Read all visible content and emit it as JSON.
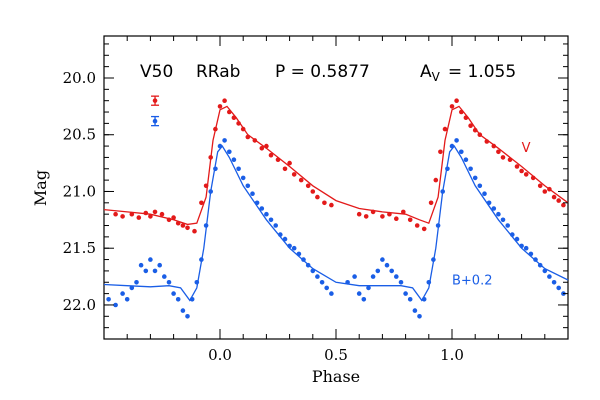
{
  "chart_data": {
    "type": "scatter",
    "title": "",
    "xlabel": "Phase",
    "ylabel": "Mag",
    "xlim": [
      -0.5,
      1.5
    ],
    "ylim": [
      22.3,
      19.63
    ],
    "y_inverted": true,
    "grid": false,
    "x_ticks": [
      {
        "value": 0.0,
        "label": "0.0"
      },
      {
        "value": 0.5,
        "label": "0.5"
      },
      {
        "value": 1.0,
        "label": "1.0"
      }
    ],
    "y_ticks": [
      {
        "value": 20.0,
        "label": "20.0"
      },
      {
        "value": 20.5,
        "label": "20.5"
      },
      {
        "value": 21.0,
        "label": "21.0"
      },
      {
        "value": 21.5,
        "label": "21.5"
      },
      {
        "value": 22.0,
        "label": "22.0"
      }
    ],
    "header": {
      "star": "V50",
      "type": "RRab",
      "period": "P = 0.5877",
      "amp_prefix": "A",
      "amp_sub": "V",
      "amp_value": "= 1.055"
    },
    "error_bars": [
      {
        "color": "#e31a1a",
        "x": -0.28,
        "y": 20.2,
        "err": 0.04
      },
      {
        "color": "#1a5ee6",
        "x": -0.28,
        "y": 20.38,
        "err": 0.04
      }
    ],
    "series": [
      {
        "name": "V",
        "color": "#e31a1a",
        "label_x": 1.3,
        "label_y": 20.65,
        "curve": [
          [
            -0.5,
            21.16
          ],
          [
            -0.4,
            21.18
          ],
          [
            -0.3,
            21.2
          ],
          [
            -0.2,
            21.25
          ],
          [
            -0.14,
            21.29
          ],
          [
            -0.1,
            21.28
          ],
          [
            -0.06,
            21.05
          ],
          [
            -0.03,
            20.55
          ],
          [
            0.0,
            20.28
          ],
          [
            0.03,
            20.25
          ],
          [
            0.07,
            20.35
          ],
          [
            0.12,
            20.5
          ],
          [
            0.2,
            20.62
          ],
          [
            0.3,
            20.78
          ],
          [
            0.4,
            20.95
          ],
          [
            0.5,
            21.08
          ],
          [
            0.6,
            21.15
          ],
          [
            0.7,
            21.18
          ],
          [
            0.8,
            21.2
          ],
          [
            0.86,
            21.25
          ],
          [
            0.9,
            21.28
          ],
          [
            0.94,
            21.05
          ],
          [
            0.97,
            20.55
          ],
          [
            1.0,
            20.28
          ],
          [
            1.03,
            20.25
          ],
          [
            1.07,
            20.35
          ],
          [
            1.12,
            20.5
          ],
          [
            1.2,
            20.62
          ],
          [
            1.3,
            20.78
          ],
          [
            1.4,
            20.95
          ],
          [
            1.5,
            21.1
          ]
        ],
        "points": [
          [
            -0.45,
            21.2
          ],
          [
            -0.42,
            21.22
          ],
          [
            -0.38,
            21.2
          ],
          [
            -0.35,
            21.23
          ],
          [
            -0.32,
            21.19
          ],
          [
            -0.3,
            21.22
          ],
          [
            -0.28,
            21.18
          ],
          [
            -0.25,
            21.2
          ],
          [
            -0.22,
            21.25
          ],
          [
            -0.2,
            21.23
          ],
          [
            -0.18,
            21.28
          ],
          [
            -0.16,
            21.3
          ],
          [
            -0.14,
            21.32
          ],
          [
            -0.11,
            21.35
          ],
          [
            -0.08,
            21.1
          ],
          [
            -0.06,
            20.95
          ],
          [
            -0.04,
            20.7
          ],
          [
            -0.02,
            20.45
          ],
          [
            0.0,
            20.25
          ],
          [
            0.02,
            20.2
          ],
          [
            0.04,
            20.3
          ],
          [
            0.06,
            20.35
          ],
          [
            0.08,
            20.4
          ],
          [
            0.1,
            20.45
          ],
          [
            0.12,
            20.52
          ],
          [
            0.15,
            20.55
          ],
          [
            0.18,
            20.62
          ],
          [
            0.2,
            20.6
          ],
          [
            0.22,
            20.68
          ],
          [
            0.25,
            20.72
          ],
          [
            0.28,
            20.8
          ],
          [
            0.3,
            20.75
          ],
          [
            0.32,
            20.85
          ],
          [
            0.35,
            20.9
          ],
          [
            0.38,
            20.95
          ],
          [
            0.4,
            21.0
          ],
          [
            0.42,
            21.05
          ],
          [
            0.45,
            21.1
          ],
          [
            0.48,
            21.12
          ],
          [
            0.6,
            21.2
          ],
          [
            0.63,
            21.22
          ],
          [
            0.66,
            21.18
          ],
          [
            0.7,
            21.22
          ],
          [
            0.73,
            21.2
          ],
          [
            0.76,
            21.24
          ],
          [
            0.79,
            21.18
          ],
          [
            0.82,
            21.25
          ],
          [
            0.85,
            21.3
          ],
          [
            0.88,
            21.33
          ],
          [
            0.91,
            21.1
          ],
          [
            0.93,
            20.9
          ],
          [
            0.95,
            20.65
          ],
          [
            0.97,
            20.45
          ],
          [
            1.0,
            20.25
          ],
          [
            1.02,
            20.2
          ],
          [
            1.04,
            20.3
          ],
          [
            1.06,
            20.35
          ],
          [
            1.08,
            20.42
          ],
          [
            1.1,
            20.46
          ],
          [
            1.12,
            20.5
          ],
          [
            1.15,
            20.56
          ],
          [
            1.18,
            20.6
          ],
          [
            1.2,
            20.65
          ],
          [
            1.22,
            20.7
          ],
          [
            1.25,
            20.72
          ],
          [
            1.28,
            20.78
          ],
          [
            1.3,
            20.82
          ],
          [
            1.32,
            20.85
          ],
          [
            1.35,
            20.88
          ],
          [
            1.38,
            20.95
          ],
          [
            1.4,
            21.0
          ],
          [
            1.42,
            20.98
          ],
          [
            1.44,
            21.05
          ],
          [
            1.46,
            21.08
          ],
          [
            1.48,
            21.12
          ]
        ]
      },
      {
        "name": "B+0.2",
        "color": "#1a5ee6",
        "label_x": 1.0,
        "label_y": 21.82,
        "curve": [
          [
            -0.5,
            21.82
          ],
          [
            -0.4,
            21.83
          ],
          [
            -0.3,
            21.84
          ],
          [
            -0.22,
            21.83
          ],
          [
            -0.17,
            21.85
          ],
          [
            -0.13,
            21.96
          ],
          [
            -0.1,
            21.85
          ],
          [
            -0.07,
            21.5
          ],
          [
            -0.04,
            21.0
          ],
          [
            -0.01,
            20.65
          ],
          [
            0.01,
            20.6
          ],
          [
            0.04,
            20.7
          ],
          [
            0.1,
            20.95
          ],
          [
            0.2,
            21.25
          ],
          [
            0.3,
            21.5
          ],
          [
            0.4,
            21.68
          ],
          [
            0.5,
            21.8
          ],
          [
            0.6,
            21.83
          ],
          [
            0.7,
            21.83
          ],
          [
            0.78,
            21.83
          ],
          [
            0.83,
            21.85
          ],
          [
            0.87,
            21.96
          ],
          [
            0.9,
            21.85
          ],
          [
            0.93,
            21.5
          ],
          [
            0.96,
            21.0
          ],
          [
            0.99,
            20.65
          ],
          [
            1.01,
            20.6
          ],
          [
            1.04,
            20.7
          ],
          [
            1.1,
            20.95
          ],
          [
            1.2,
            21.25
          ],
          [
            1.3,
            21.5
          ],
          [
            1.4,
            21.68
          ],
          [
            1.5,
            21.78
          ]
        ],
        "points": [
          [
            -0.48,
            21.95
          ],
          [
            -0.45,
            22.0
          ],
          [
            -0.42,
            21.9
          ],
          [
            -0.4,
            21.95
          ],
          [
            -0.38,
            21.85
          ],
          [
            -0.36,
            21.8
          ],
          [
            -0.34,
            21.65
          ],
          [
            -0.32,
            21.7
          ],
          [
            -0.3,
            21.6
          ],
          [
            -0.28,
            21.7
          ],
          [
            -0.26,
            21.65
          ],
          [
            -0.24,
            21.75
          ],
          [
            -0.22,
            21.8
          ],
          [
            -0.2,
            21.9
          ],
          [
            -0.18,
            21.95
          ],
          [
            -0.16,
            22.05
          ],
          [
            -0.14,
            22.1
          ],
          [
            -0.12,
            21.95
          ],
          [
            -0.1,
            21.8
          ],
          [
            -0.08,
            21.6
          ],
          [
            -0.06,
            21.3
          ],
          [
            -0.04,
            21.0
          ],
          [
            -0.02,
            20.8
          ],
          [
            0.0,
            20.6
          ],
          [
            0.02,
            20.55
          ],
          [
            0.04,
            20.65
          ],
          [
            0.06,
            20.72
          ],
          [
            0.08,
            20.8
          ],
          [
            0.1,
            20.88
          ],
          [
            0.12,
            20.95
          ],
          [
            0.14,
            21.02
          ],
          [
            0.16,
            21.1
          ],
          [
            0.18,
            21.15
          ],
          [
            0.2,
            21.2
          ],
          [
            0.22,
            21.25
          ],
          [
            0.24,
            21.3
          ],
          [
            0.26,
            21.38
          ],
          [
            0.28,
            21.42
          ],
          [
            0.3,
            21.48
          ],
          [
            0.32,
            21.5
          ],
          [
            0.34,
            21.55
          ],
          [
            0.36,
            21.6
          ],
          [
            0.38,
            21.65
          ],
          [
            0.4,
            21.7
          ],
          [
            0.42,
            21.75
          ],
          [
            0.44,
            21.8
          ],
          [
            0.46,
            21.85
          ],
          [
            0.48,
            21.9
          ],
          [
            0.55,
            21.8
          ],
          [
            0.58,
            21.75
          ],
          [
            0.6,
            21.9
          ],
          [
            0.62,
            21.95
          ],
          [
            0.64,
            21.85
          ],
          [
            0.66,
            21.75
          ],
          [
            0.68,
            21.7
          ],
          [
            0.7,
            21.6
          ],
          [
            0.72,
            21.65
          ],
          [
            0.74,
            21.7
          ],
          [
            0.76,
            21.75
          ],
          [
            0.78,
            21.8
          ],
          [
            0.8,
            21.9
          ],
          [
            0.82,
            21.95
          ],
          [
            0.84,
            22.05
          ],
          [
            0.86,
            22.1
          ],
          [
            0.88,
            21.95
          ],
          [
            0.9,
            21.8
          ],
          [
            0.92,
            21.6
          ],
          [
            0.94,
            21.3
          ],
          [
            0.96,
            21.0
          ],
          [
            0.98,
            20.8
          ],
          [
            1.0,
            20.6
          ],
          [
            1.02,
            20.55
          ],
          [
            1.04,
            20.65
          ],
          [
            1.06,
            20.72
          ],
          [
            1.08,
            20.8
          ],
          [
            1.1,
            20.88
          ],
          [
            1.12,
            20.95
          ],
          [
            1.14,
            21.02
          ],
          [
            1.16,
            21.1
          ],
          [
            1.18,
            21.15
          ],
          [
            1.2,
            21.2
          ],
          [
            1.22,
            21.25
          ],
          [
            1.24,
            21.3
          ],
          [
            1.26,
            21.38
          ],
          [
            1.28,
            21.42
          ],
          [
            1.3,
            21.48
          ],
          [
            1.32,
            21.5
          ],
          [
            1.34,
            21.55
          ],
          [
            1.36,
            21.6
          ],
          [
            1.38,
            21.65
          ],
          [
            1.4,
            21.7
          ],
          [
            1.42,
            21.75
          ],
          [
            1.44,
            21.8
          ],
          [
            1.46,
            21.85
          ],
          [
            1.48,
            21.9
          ]
        ]
      }
    ]
  }
}
